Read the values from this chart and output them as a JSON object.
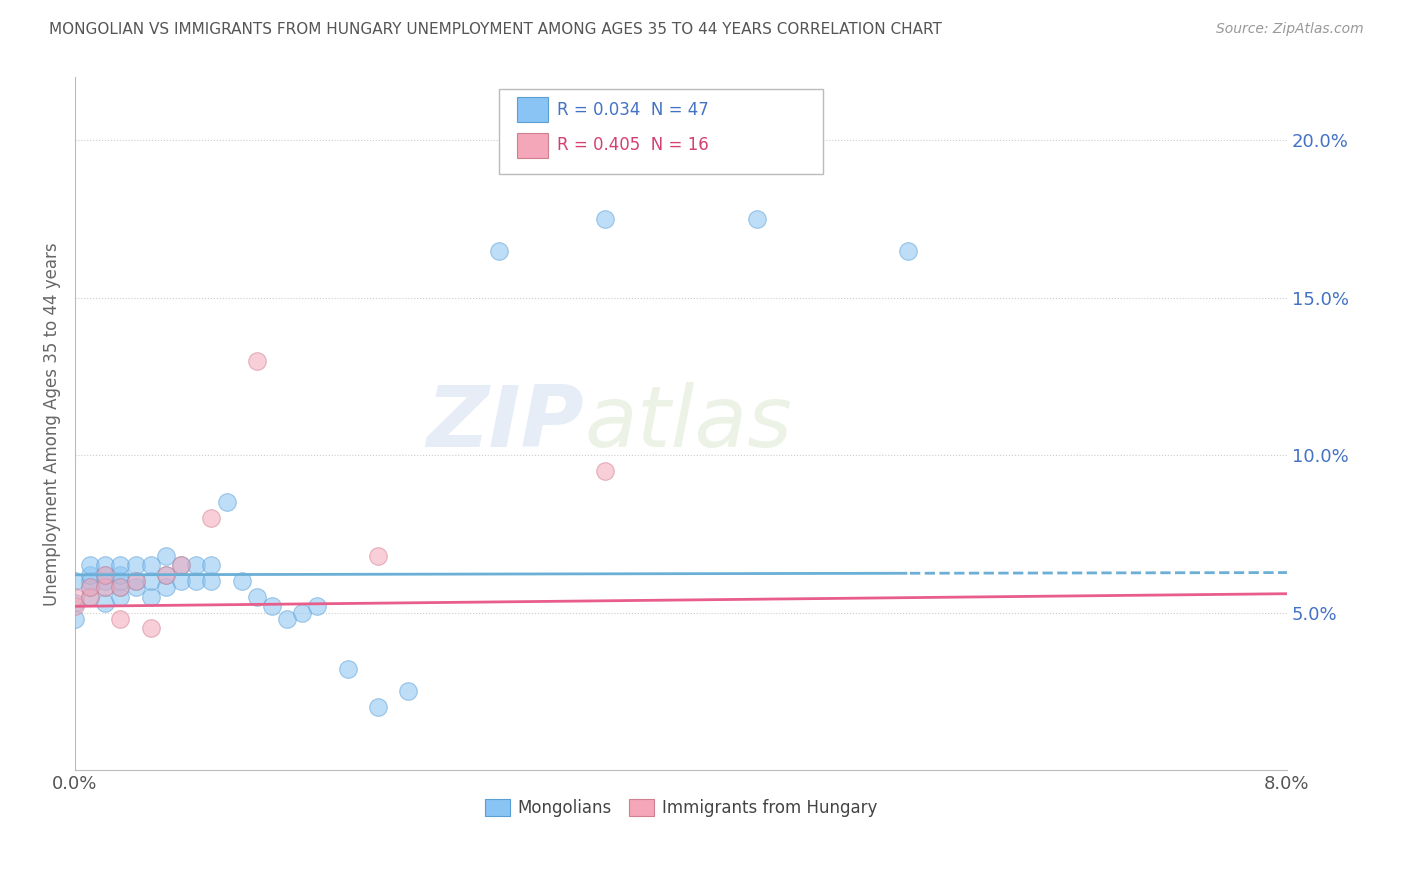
{
  "title": "MONGOLIAN VS IMMIGRANTS FROM HUNGARY UNEMPLOYMENT AMONG AGES 35 TO 44 YEARS CORRELATION CHART",
  "source": "Source: ZipAtlas.com",
  "ylabel": "Unemployment Among Ages 35 to 44 years",
  "color_mongolian": "#89C4F4",
  "color_hungary": "#F4A7B9",
  "color_line_mongolian": "#6BAED6",
  "color_line_hungary": "#E85D8A",
  "color_text_blue": "#4472C4",
  "color_text_pink": "#D44070",
  "ytick_labels": [
    "5.0%",
    "10.0%",
    "15.0%",
    "20.0%"
  ],
  "ytick_values": [
    0.05,
    0.1,
    0.15,
    0.2
  ],
  "xlim": [
    0.0,
    0.08
  ],
  "ylim": [
    0.0,
    0.22
  ],
  "mongolian_x": [
    0.0,
    0.0,
    0.0,
    0.001,
    0.001,
    0.001,
    0.001,
    0.001,
    0.002,
    0.002,
    0.002,
    0.002,
    0.002,
    0.003,
    0.003,
    0.003,
    0.003,
    0.003,
    0.004,
    0.004,
    0.004,
    0.005,
    0.005,
    0.005,
    0.006,
    0.006,
    0.006,
    0.007,
    0.007,
    0.008,
    0.008,
    0.009,
    0.009,
    0.01,
    0.011,
    0.012,
    0.013,
    0.014,
    0.015,
    0.016,
    0.018,
    0.02,
    0.022,
    0.028,
    0.035,
    0.045,
    0.055
  ],
  "mongolian_y": [
    0.06,
    0.053,
    0.048,
    0.055,
    0.058,
    0.06,
    0.062,
    0.065,
    0.053,
    0.058,
    0.06,
    0.062,
    0.065,
    0.055,
    0.058,
    0.06,
    0.062,
    0.065,
    0.058,
    0.06,
    0.065,
    0.055,
    0.06,
    0.065,
    0.058,
    0.062,
    0.068,
    0.06,
    0.065,
    0.06,
    0.065,
    0.06,
    0.065,
    0.085,
    0.06,
    0.055,
    0.052,
    0.048,
    0.05,
    0.052,
    0.032,
    0.02,
    0.025,
    0.165,
    0.175,
    0.175,
    0.165
  ],
  "hungary_x": [
    0.0,
    0.0,
    0.001,
    0.001,
    0.002,
    0.002,
    0.003,
    0.003,
    0.004,
    0.005,
    0.006,
    0.007,
    0.009,
    0.012,
    0.02,
    0.035
  ],
  "hungary_y": [
    0.052,
    0.055,
    0.055,
    0.058,
    0.058,
    0.062,
    0.048,
    0.058,
    0.06,
    0.045,
    0.062,
    0.065,
    0.08,
    0.13,
    0.068,
    0.095
  ],
  "watermark_zip": "ZIP",
  "watermark_atlas": "atlas",
  "background_color": "#FFFFFF",
  "grid_color": "#CCCCCC",
  "legend_r1": "R = 0.034",
  "legend_n1": "N = 47",
  "legend_r2": "R = 0.405",
  "legend_n2": "N = 16"
}
